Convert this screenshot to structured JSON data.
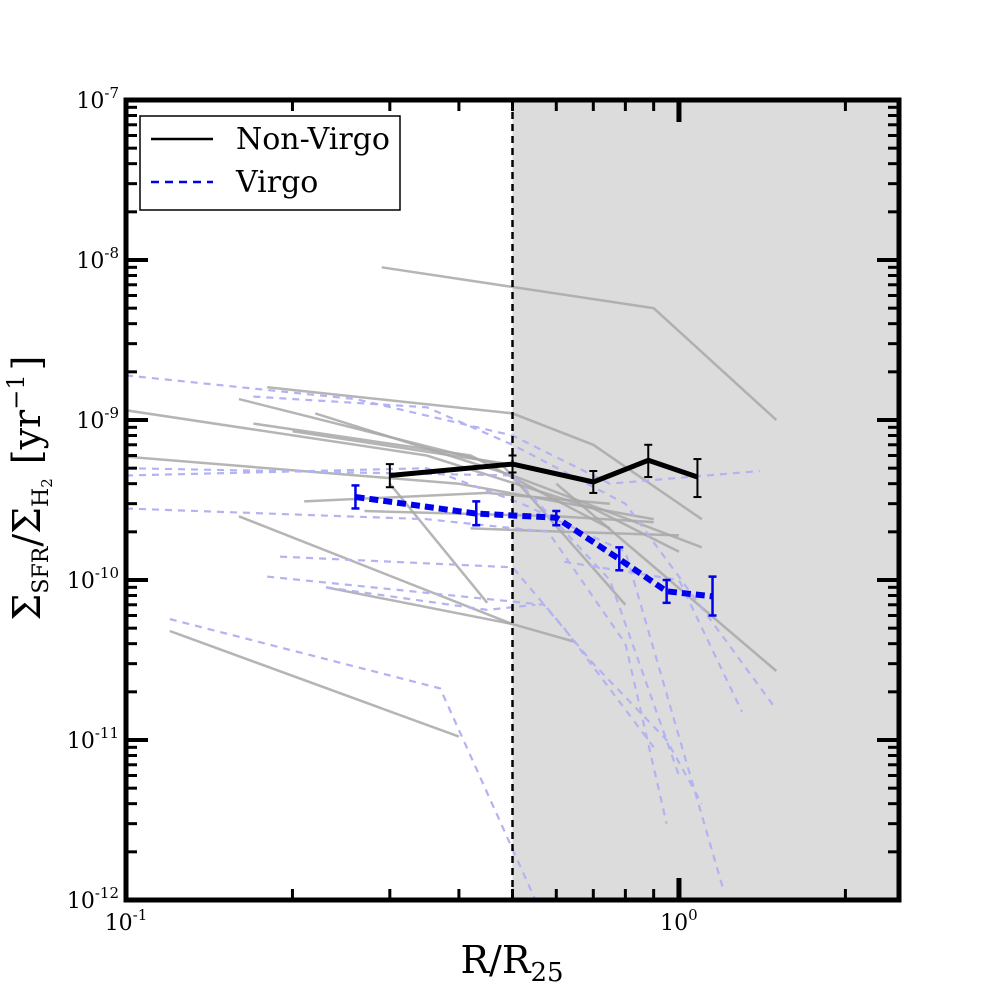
{
  "chart_data": {
    "type": "line",
    "xlabel": {
      "main": "R/R",
      "sub": "25"
    },
    "ylabel": {
      "sigma1": "Σ",
      "sub1": "SFR",
      "slash": "/",
      "sigma2": "Σ",
      "sub2": "H",
      "sub2b": "2",
      "unit": "[yr",
      "unit_exp": "−1",
      "unit_close": "]"
    },
    "xscale": "log",
    "yscale": "log",
    "xlim": [
      0.1,
      2.5
    ],
    "ylim": [
      1e-12,
      1e-07
    ],
    "x_ticks": [
      {
        "value": 0.1,
        "base": "10",
        "exp": "-1"
      },
      {
        "value": 1.0,
        "base": "10",
        "exp": "0"
      }
    ],
    "y_ticks": [
      {
        "value": 1e-07,
        "base": "10",
        "exp": "-7"
      },
      {
        "value": 1e-08,
        "base": "10",
        "exp": "-8"
      },
      {
        "value": 1e-09,
        "base": "10",
        "exp": "-9"
      },
      {
        "value": 1e-10,
        "base": "10",
        "exp": "-10"
      },
      {
        "value": 1e-11,
        "base": "10",
        "exp": "-11"
      },
      {
        "value": 1e-12,
        "base": "10",
        "exp": "-12"
      }
    ],
    "vline_x": 0.5,
    "shaded_region": {
      "x_from": 0.5,
      "x_to": 2.5,
      "color": "#dcdcdc"
    },
    "legend": {
      "placement": "top-left",
      "entries": [
        {
          "label": "Non-Virgo",
          "style": "solid",
          "color": "#000000"
        },
        {
          "label": "Virgo",
          "style": "dashed",
          "color": "#0000ee"
        }
      ]
    },
    "series": [
      {
        "name": "Non-Virgo",
        "color": "#000000",
        "style": "solid",
        "points": [
          {
            "x": 0.3,
            "y": 4.5e-10,
            "err_lo": 3.8e-10,
            "err_hi": 5.3e-10
          },
          {
            "x": 0.5,
            "y": 5.3e-10,
            "err_lo": 4.7e-10,
            "err_hi": 6e-10
          },
          {
            "x": 0.7,
            "y": 4.1e-10,
            "err_lo": 3.5e-10,
            "err_hi": 4.8e-10
          },
          {
            "x": 0.88,
            "y": 5.6e-10,
            "err_lo": 4.4e-10,
            "err_hi": 7e-10
          },
          {
            "x": 1.08,
            "y": 4.4e-10,
            "err_lo": 3.3e-10,
            "err_hi": 5.7e-10
          }
        ]
      },
      {
        "name": "Virgo",
        "color": "#0000ee",
        "style": "dashed",
        "points": [
          {
            "x": 0.26,
            "y": 3.3e-10,
            "err_lo": 2.8e-10,
            "err_hi": 3.9e-10
          },
          {
            "x": 0.43,
            "y": 2.6e-10,
            "err_lo": 2.2e-10,
            "err_hi": 3.1e-10
          },
          {
            "x": 0.6,
            "y": 2.45e-10,
            "err_lo": 2.2e-10,
            "err_hi": 2.7e-10
          },
          {
            "x": 0.78,
            "y": 1.35e-10,
            "err_lo": 1.15e-10,
            "err_hi": 1.6e-10
          },
          {
            "x": 0.95,
            "y": 8.5e-11,
            "err_lo": 7.2e-11,
            "err_hi": 1e-10
          },
          {
            "x": 1.15,
            "y": 7.9e-11,
            "err_lo": 6e-11,
            "err_hi": 1.05e-10
          }
        ]
      }
    ],
    "background_tracks": {
      "non_virgo_color": "#a8a8a8",
      "virgo_color": "#b3b3f2",
      "non_virgo": [
        [
          [
            0.29,
            9e-09
          ],
          [
            0.9,
            5e-09
          ],
          [
            1.5,
            1e-09
          ]
        ],
        [
          [
            0.1,
            1.15e-09
          ],
          [
            0.35,
            6e-10
          ],
          [
            0.7,
            2.8e-10
          ],
          [
            1.0,
            1.5e-10
          ]
        ],
        [
          [
            0.18,
            1.6e-09
          ],
          [
            0.5,
            1.1e-09
          ],
          [
            0.7,
            7e-10
          ],
          [
            1.1,
            2.4e-10
          ]
        ],
        [
          [
            0.16,
            1.35e-09
          ],
          [
            0.48,
            5.2e-10
          ],
          [
            0.8,
            7e-11
          ]
        ],
        [
          [
            0.22,
            1.1e-09
          ],
          [
            0.5,
            4.5e-10
          ],
          [
            1.1,
            1.6e-10
          ]
        ],
        [
          [
            0.17,
            9.5e-10
          ],
          [
            0.42,
            6e-10
          ],
          [
            0.75,
            2.1e-10
          ]
        ],
        [
          [
            0.2,
            8.5e-10
          ],
          [
            0.55,
            5e-10
          ]
        ],
        [
          [
            0.1,
            5.9e-10
          ],
          [
            0.4,
            4e-10
          ],
          [
            0.9,
            2.4e-10
          ]
        ],
        [
          [
            0.21,
            3.1e-10
          ],
          [
            0.45,
            3.5e-10
          ],
          [
            0.75,
            3e-10
          ]
        ],
        [
          [
            0.27,
            2.7e-10
          ],
          [
            0.6,
            2.5e-10
          ],
          [
            0.9,
            2.3e-10
          ]
        ],
        [
          [
            0.42,
            2.1e-10
          ],
          [
            0.62,
            2e-10
          ],
          [
            1.0,
            1.9e-10
          ]
        ],
        [
          [
            0.3,
            4e-10
          ],
          [
            0.45,
            7.2e-11
          ]
        ],
        [
          [
            0.16,
            2.5e-10
          ],
          [
            0.5,
            5.3e-11
          ]
        ],
        [
          [
            0.23,
            9e-11
          ],
          [
            0.5,
            5.3e-11
          ],
          [
            0.65,
            4.1e-11
          ]
        ],
        [
          [
            0.12,
            4.8e-11
          ],
          [
            0.4,
            1.05e-11
          ]
        ],
        [
          [
            0.6,
            4e-10
          ],
          [
            1.5,
            2.7e-11
          ]
        ]
      ],
      "virgo": [
        [
          [
            0.1,
            1.9e-09
          ],
          [
            0.26,
            1.35e-09
          ],
          [
            0.5,
            8e-10
          ],
          [
            0.75,
            4e-10
          ],
          [
            1.4,
            4.8e-10
          ]
        ],
        [
          [
            0.17,
            1.4e-09
          ],
          [
            0.35,
            1.2e-09
          ],
          [
            0.5,
            7e-10
          ],
          [
            0.8,
            3e-10
          ],
          [
            1.5,
            1.55e-11
          ]
        ],
        [
          [
            0.1,
            5e-10
          ],
          [
            0.5,
            4.5e-10
          ],
          [
            0.75,
            1e-10
          ],
          [
            1.0,
            6e-12
          ]
        ],
        [
          [
            0.1,
            4.5e-10
          ],
          [
            0.35,
            5e-10
          ],
          [
            0.52,
            3e-10
          ],
          [
            0.8,
            1.5e-10
          ],
          [
            1.2,
            1.2e-12
          ]
        ],
        [
          [
            0.1,
            2.8e-10
          ],
          [
            0.35,
            2.4e-10
          ],
          [
            0.58,
            2e-10
          ],
          [
            0.8,
            4e-11
          ],
          [
            0.95,
            3e-12
          ]
        ],
        [
          [
            0.19,
            1.4e-10
          ],
          [
            0.5,
            1.2e-10
          ],
          [
            0.62,
            5e-11
          ],
          [
            0.9,
            9e-12
          ]
        ],
        [
          [
            0.18,
            1.05e-10
          ],
          [
            0.57,
            7e-11
          ],
          [
            0.7,
            3e-11
          ],
          [
            0.95,
            1e-11
          ],
          [
            1.1,
            4e-12
          ]
        ],
        [
          [
            0.12,
            5.7e-11
          ],
          [
            0.37,
            2.1e-11
          ],
          [
            0.55,
            1e-12
          ]
        ],
        [
          [
            0.23,
            9e-11
          ],
          [
            0.45,
            6.5e-11
          ],
          [
            0.55,
            7e-11
          ]
        ],
        [
          [
            0.62,
            1.3e-10
          ],
          [
            1.0,
            1e-10
          ],
          [
            1.3,
            1.5e-11
          ]
        ]
      ]
    }
  }
}
